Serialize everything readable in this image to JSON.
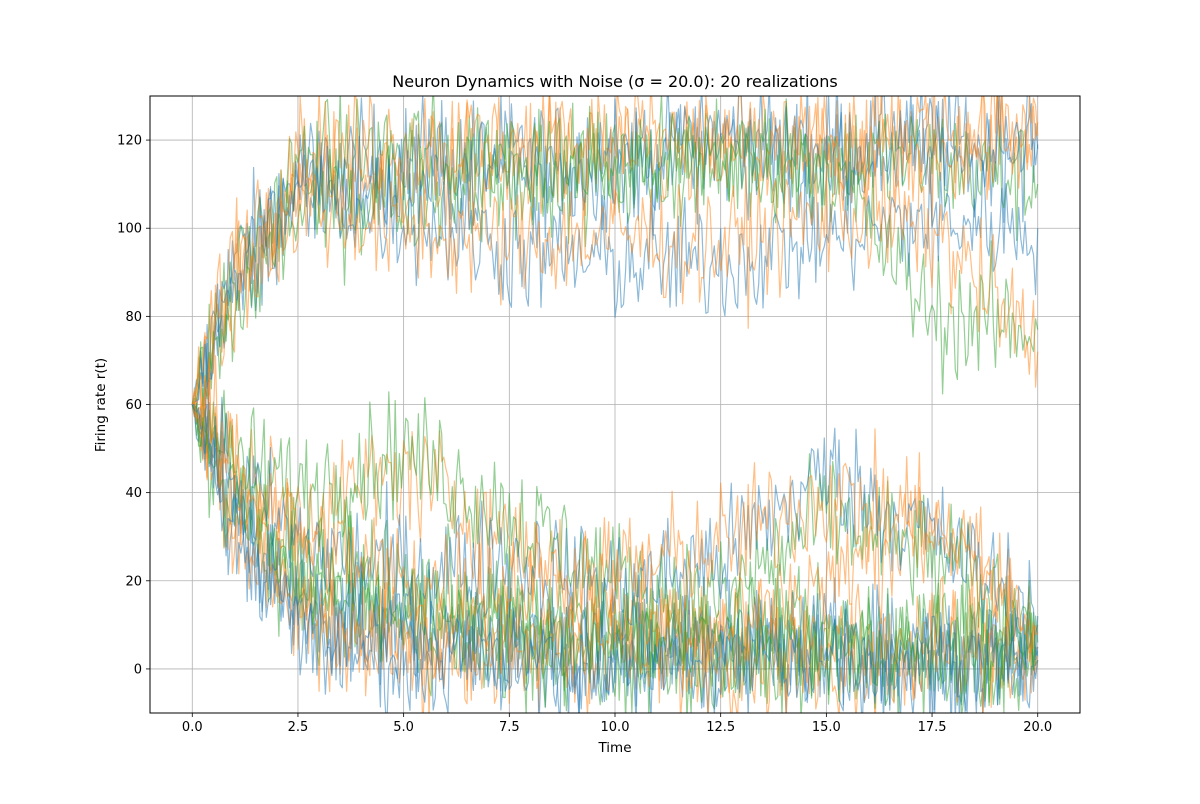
{
  "chart_data": {
    "type": "line",
    "title": "Neuron Dynamics with Noise (σ = 20.0): 20 realizations",
    "xlabel": "Time",
    "ylabel": "Firing rate r(t)",
    "xlim": [
      -1.0,
      21.0
    ],
    "ylim": [
      -10,
      130
    ],
    "xticks": [
      0.0,
      2.5,
      5.0,
      7.5,
      10.0,
      12.5,
      15.0,
      17.5,
      20.0
    ],
    "xtick_labels": [
      "0.0",
      "2.5",
      "5.0",
      "7.5",
      "10.0",
      "12.5",
      "15.0",
      "17.5",
      "20.0"
    ],
    "yticks": [
      0,
      20,
      40,
      60,
      80,
      100,
      120
    ],
    "ytick_labels": [
      "0",
      "20",
      "40",
      "60",
      "80",
      "100",
      "120"
    ],
    "grid": true,
    "legend": "none",
    "colors": [
      "#1f77b4",
      "#ff7f0e",
      "#2ca02c"
    ],
    "line_alpha": 0.5,
    "sigma": 20.0,
    "realizations": 20,
    "series": [
      {
        "x": [
          0,
          1,
          2.5,
          5,
          7.5,
          10,
          12.5,
          15,
          17.5,
          20
        ],
        "values": [
          60,
          92,
          112,
          115,
          116,
          114,
          118,
          117,
          120,
          118
        ]
      },
      {
        "x": [
          0,
          1,
          2.5,
          5,
          7.5,
          10,
          12.5,
          15,
          17.5,
          20
        ],
        "values": [
          60,
          88,
          110,
          112,
          115,
          118,
          116,
          119,
          121,
          124
        ]
      },
      {
        "x": [
          0,
          1,
          2.5,
          5,
          7.5,
          10,
          12.5,
          15,
          17.5,
          20
        ],
        "values": [
          60,
          90,
          114,
          118,
          116,
          112,
          114,
          116,
          115,
          110
        ]
      },
      {
        "x": [
          0,
          1,
          2.5,
          5,
          7.5,
          10,
          12.5,
          15,
          17.5,
          20
        ],
        "values": [
          60,
          85,
          108,
          110,
          113,
          116,
          120,
          118,
          117,
          119
        ]
      },
      {
        "x": [
          0,
          1,
          2.5,
          5,
          7.5,
          10,
          12.5,
          15,
          17.5,
          20
        ],
        "values": [
          60,
          95,
          116,
          120,
          118,
          120,
          119,
          116,
          118,
          121
        ]
      },
      {
        "x": [
          0,
          1,
          2.5,
          5,
          7.5,
          10,
          12.5,
          15,
          17.5,
          20
        ],
        "values": [
          60,
          80,
          104,
          108,
          112,
          114,
          117,
          115,
          80,
          77
        ]
      },
      {
        "x": [
          0,
          1,
          2.5,
          5,
          7.5,
          10,
          12.5,
          15,
          17.5,
          20
        ],
        "values": [
          60,
          88,
          109,
          103,
          95,
          92,
          92,
          98,
          102,
          100
        ]
      },
      {
        "x": [
          0,
          1,
          2.5,
          5,
          7.5,
          10,
          12.5,
          15,
          17.5,
          20
        ],
        "values": [
          60,
          86,
          106,
          100,
          97,
          99,
          96,
          104,
          100,
          72
        ]
      },
      {
        "x": [
          0,
          1,
          2.5,
          5,
          7.5,
          10,
          12.5,
          15,
          17.5,
          20
        ],
        "values": [
          60,
          35,
          18,
          10,
          6,
          5,
          4,
          6,
          5,
          4
        ]
      },
      {
        "x": [
          0,
          1,
          2.5,
          5,
          7.5,
          10,
          12.5,
          15,
          17.5,
          20
        ],
        "values": [
          60,
          38,
          14,
          8,
          4,
          2,
          3,
          5,
          2,
          3
        ]
      },
      {
        "x": [
          0,
          1,
          2.5,
          5,
          7.5,
          10,
          12.5,
          15,
          17.5,
          20
        ],
        "values": [
          60,
          33,
          12,
          5,
          3,
          6,
          4,
          2,
          4,
          5
        ]
      },
      {
        "x": [
          0,
          1,
          2.5,
          5,
          7.5,
          10,
          12.5,
          15,
          17.5,
          20
        ],
        "values": [
          60,
          40,
          20,
          12,
          8,
          3,
          5,
          6,
          7,
          2
        ]
      },
      {
        "x": [
          0,
          1,
          2.5,
          5,
          7.5,
          10,
          12.5,
          15,
          17.5,
          20
        ],
        "values": [
          60,
          30,
          10,
          3,
          2,
          4,
          2,
          3,
          1,
          5
        ]
      },
      {
        "x": [
          0,
          1,
          2.5,
          5,
          7.5,
          10,
          12.5,
          15,
          17.5,
          20
        ],
        "values": [
          60,
          36,
          15,
          7,
          5,
          7,
          6,
          4,
          6,
          3
        ]
      },
      {
        "x": [
          0,
          1,
          2.5,
          5,
          7.5,
          10,
          12.5,
          15,
          17.5,
          20
        ],
        "values": [
          60,
          42,
          25,
          18,
          12,
          8,
          6,
          5,
          4,
          6
        ]
      },
      {
        "x": [
          0,
          1,
          2.5,
          5,
          7.5,
          10,
          12.5,
          15,
          17.5,
          20
        ],
        "values": [
          60,
          34,
          13,
          4,
          6,
          3,
          7,
          4,
          3,
          2
        ]
      },
      {
        "x": [
          0,
          1,
          2.5,
          5,
          7.5,
          10,
          12.5,
          15,
          17.5,
          20
        ],
        "values": [
          60,
          45,
          35,
          45,
          30,
          15,
          10,
          20,
          35,
          8
        ]
      },
      {
        "x": [
          0,
          1,
          2.5,
          5,
          7.5,
          10,
          12.5,
          15,
          17.5,
          20
        ],
        "values": [
          60,
          48,
          40,
          50,
          35,
          20,
          15,
          35,
          25,
          10
        ]
      },
      {
        "x": [
          0,
          1,
          2.5,
          5,
          7.5,
          10,
          12.5,
          15,
          17.5,
          20
        ],
        "values": [
          60,
          44,
          28,
          22,
          25,
          18,
          25,
          45,
          30,
          12
        ]
      },
      {
        "x": [
          0,
          1,
          2.5,
          5,
          7.5,
          10,
          12.5,
          15,
          17.5,
          20
        ],
        "values": [
          60,
          46,
          30,
          20,
          18,
          22,
          28,
          40,
          32,
          8
        ]
      }
    ]
  }
}
